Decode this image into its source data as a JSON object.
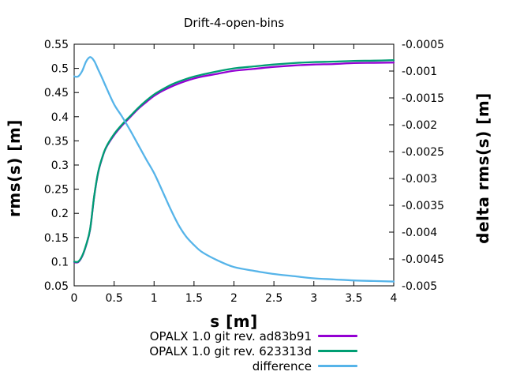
{
  "chart_data": {
    "type": "line",
    "title": "Drift-4-open-bins",
    "xlabel": "s [m]",
    "ylabel_left": "rms(s) [m]",
    "ylabel_right": "delta rms(s) [m]",
    "xlim": [
      0,
      4
    ],
    "ylim_left": [
      0.05,
      0.55
    ],
    "ylim_right": [
      -0.005,
      -0.0005
    ],
    "x_ticks": [
      0,
      0.5,
      1,
      1.5,
      2,
      2.5,
      3,
      3.5,
      4
    ],
    "x_tick_labels": [
      "0",
      "0.5",
      "1",
      "1.5",
      "2",
      "2.5",
      "3",
      "3.5",
      "4"
    ],
    "y_ticks_left": [
      0.05,
      0.1,
      0.15,
      0.2,
      0.25,
      0.3,
      0.35,
      0.4,
      0.45,
      0.5,
      0.55
    ],
    "y_tick_labels_left": [
      "0.05",
      "0.1",
      "0.15",
      "0.2",
      "0.25",
      "0.3",
      "0.35",
      "0.4",
      "0.45",
      "0.5",
      "0.55"
    ],
    "y_ticks_right": [
      -0.0005,
      -0.001,
      -0.0015,
      -0.002,
      -0.0025,
      -0.003,
      -0.0035,
      -0.004,
      -0.0045,
      -0.005
    ],
    "y_tick_labels_right": [
      "-0.0005",
      "-0.001",
      "-0.0015",
      "-0.002",
      "-0.0025",
      "-0.003",
      "-0.0035",
      "-0.004",
      "-0.0045",
      "-0.005"
    ],
    "grid": false,
    "legend_position": "below-plot-right",
    "frame_color": "#000000",
    "background_color": "#ffffff",
    "x": [
      0,
      0.05,
      0.1,
      0.15,
      0.2,
      0.25,
      0.3,
      0.35,
      0.4,
      0.5,
      0.6,
      0.7,
      0.8,
      0.9,
      1.0,
      1.1,
      1.2,
      1.3,
      1.4,
      1.5,
      1.6,
      1.8,
      2.0,
      2.25,
      2.5,
      2.75,
      3.0,
      3.25,
      3.5,
      3.75,
      4.0
    ],
    "series": [
      {
        "name": "OPALX 1.0 git rev. ad83b91",
        "color": "#9400d3",
        "axis": "left",
        "values": [
          0.099,
          0.099,
          0.111,
          0.134,
          0.167,
          0.234,
          0.284,
          0.314,
          0.336,
          0.362,
          0.382,
          0.399,
          0.416,
          0.43,
          0.443,
          0.453,
          0.461,
          0.468,
          0.474,
          0.479,
          0.483,
          0.489,
          0.495,
          0.499,
          0.503,
          0.506,
          0.508,
          0.509,
          0.511,
          0.5115,
          0.512
        ]
      },
      {
        "name": "OPALX 1.0 git rev. 623313d",
        "color": "#009e73",
        "axis": "left",
        "values": [
          0.1,
          0.1,
          0.112,
          0.135,
          0.168,
          0.235,
          0.285,
          0.315,
          0.337,
          0.364,
          0.384,
          0.401,
          0.418,
          0.433,
          0.446,
          0.456,
          0.465,
          0.472,
          0.478,
          0.483,
          0.487,
          0.494,
          0.5,
          0.504,
          0.508,
          0.511,
          0.513,
          0.514,
          0.5155,
          0.516,
          0.517
        ]
      },
      {
        "name": "difference",
        "color": "#56b4e9",
        "axis": "right",
        "values": [
          -0.0011,
          -0.0011,
          -0.001,
          -0.00082,
          -0.00074,
          -0.00081,
          -0.00097,
          -0.00113,
          -0.0013,
          -0.00162,
          -0.00185,
          -0.0021,
          -0.00237,
          -0.00264,
          -0.0029,
          -0.00322,
          -0.00355,
          -0.00385,
          -0.00408,
          -0.00424,
          -0.00437,
          -0.00453,
          -0.00465,
          -0.00472,
          -0.00478,
          -0.00482,
          -0.00486,
          -0.00488,
          -0.0049,
          -0.00491,
          -0.00492
        ]
      }
    ]
  }
}
